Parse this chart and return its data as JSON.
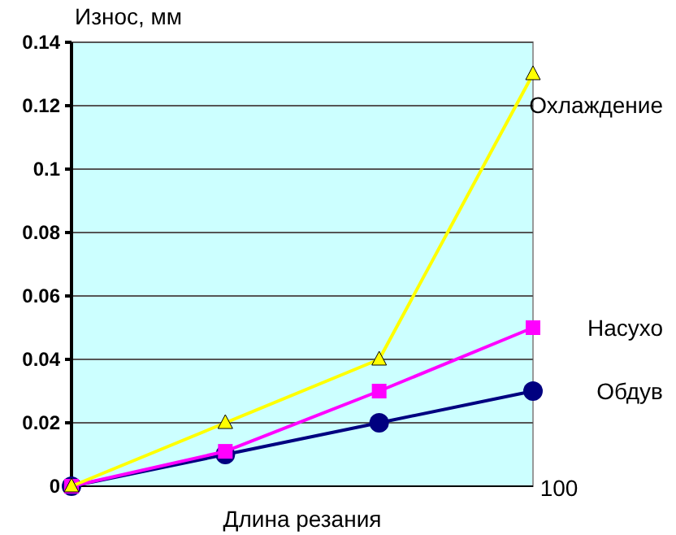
{
  "chart_data": {
    "type": "line",
    "xlabel": "Длина резания",
    "ylabel": "Износ, мм",
    "categories": [
      null,
      null,
      null,
      "100"
    ],
    "ylim": [
      0,
      0.14
    ],
    "yticks": [
      0,
      0.02,
      0.04,
      0.06,
      0.08,
      0.1,
      0.12,
      0.14
    ],
    "grid": "y",
    "series": [
      {
        "name": "Обдув",
        "color": "#000080",
        "marker": "circle",
        "values": [
          0,
          0.01,
          0.02,
          0.03
        ]
      },
      {
        "name": "Насухо",
        "color": "#ff00ff",
        "marker": "square",
        "values": [
          0,
          0.011,
          0.03,
          0.05
        ]
      },
      {
        "name": "Охлаждение",
        "color": "#ffff00",
        "marker": "triangle",
        "values": [
          0,
          0.02,
          0.04,
          0.13
        ]
      }
    ]
  }
}
